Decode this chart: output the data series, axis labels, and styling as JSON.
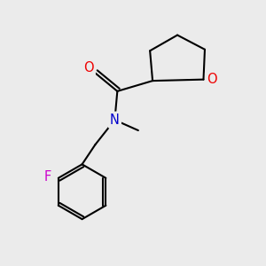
{
  "background_color": "#ebebeb",
  "atom_colors": {
    "N": "#0000cc",
    "O_carbonyl": "#ee0000",
    "O_ring": "#ee0000",
    "F": "#cc00cc"
  },
  "bond_color": "#000000",
  "bond_width": 1.5,
  "figsize": [
    3.0,
    3.0
  ],
  "dpi": 100,
  "font_size": 10.5
}
